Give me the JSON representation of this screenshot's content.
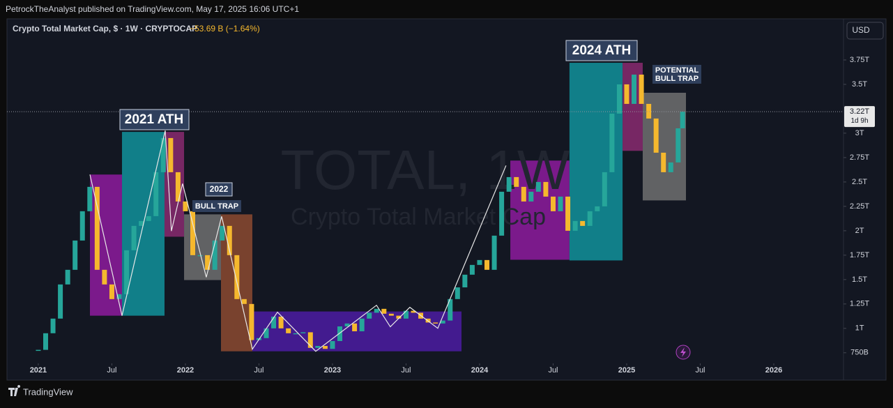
{
  "header": {
    "publisher": "PetrockTheAnalyst published on TradingView.com, May 17, 2025 16:06 UTC+1",
    "symbol": "Crypto Total Market Cap, $ · 1W · CRYPTOCAP",
    "change": "−53.69 B (−1.64%)",
    "currency": "USD"
  },
  "footer": {
    "brand": "TradingView"
  },
  "chart_data": {
    "type": "candlestick",
    "watermark": "TOTAL, 1W",
    "watermark_sub": "Crypto Total Market Cap",
    "x": [
      2021.0,
      2021.05,
      2021.1,
      2021.15,
      2021.2,
      2021.25,
      2021.3,
      2021.35,
      2021.4,
      2021.45,
      2021.5,
      2021.55,
      2021.6,
      2021.65,
      2021.7,
      2021.75,
      2021.8,
      2021.85,
      2021.9,
      2021.95,
      2022.0,
      2022.05,
      2022.1,
      2022.15,
      2022.2,
      2022.25,
      2022.3,
      2022.35,
      2022.4,
      2022.45,
      2022.5,
      2022.55,
      2022.6,
      2022.65,
      2022.7,
      2022.75,
      2022.8,
      2022.85,
      2022.9,
      2022.95,
      2023.0,
      2023.05,
      2023.1,
      2023.15,
      2023.2,
      2023.25,
      2023.3,
      2023.35,
      2023.4,
      2023.45,
      2023.5,
      2023.55,
      2023.6,
      2023.65,
      2023.7,
      2023.75,
      2023.8,
      2023.85,
      2023.9,
      2023.95,
      2024.0,
      2024.05,
      2024.1,
      2024.15,
      2024.2,
      2024.25,
      2024.3,
      2024.35,
      2024.4,
      2024.45,
      2024.5,
      2024.55,
      2024.6,
      2024.65,
      2024.7,
      2024.75,
      2024.8,
      2024.85,
      2024.9,
      2024.95,
      2025.0,
      2025.05,
      2025.1,
      2025.15,
      2025.2,
      2025.25,
      2025.3,
      2025.35,
      2025.38
    ],
    "values": [
      0.78,
      0.95,
      1.1,
      1.45,
      1.6,
      1.9,
      2.2,
      2.45,
      1.6,
      1.45,
      1.3,
      1.35,
      1.8,
      2.05,
      2.1,
      2.15,
      2.6,
      2.95,
      2.6,
      2.3,
      2.2,
      1.75,
      1.75,
      1.6,
      1.9,
      2.05,
      1.75,
      1.3,
      1.25,
      0.88,
      0.9,
      1.0,
      1.12,
      1.0,
      0.95,
      0.95,
      0.96,
      0.8,
      0.82,
      0.79,
      0.87,
      1.02,
      1.05,
      0.97,
      1.1,
      1.16,
      1.2,
      1.15,
      1.13,
      1.1,
      1.18,
      1.16,
      1.1,
      1.06,
      1.05,
      1.08,
      1.3,
      1.42,
      1.55,
      1.65,
      1.7,
      1.6,
      1.95,
      2.4,
      2.55,
      2.45,
      2.3,
      2.4,
      2.5,
      2.35,
      2.2,
      2.35,
      2.0,
      2.1,
      2.05,
      2.2,
      2.25,
      2.6,
      3.2,
      3.5,
      3.3,
      3.6,
      3.3,
      3.15,
      2.8,
      2.6,
      2.7,
      3.05,
      3.22
    ],
    "up_color": "#26a69a",
    "down_color": "#f5b82e",
    "price_label": "3.22T",
    "countdown": "1d 9h",
    "xlim": [
      2020.787,
      2026.474
    ],
    "xticks": [
      2021,
      {
        "value": 2021.5,
        "label": "Jul"
      },
      2022,
      {
        "value": 2022.5,
        "label": "Jul"
      },
      2023,
      {
        "value": 2023.5,
        "label": "Jul"
      },
      2024,
      {
        "value": 2024.5,
        "label": "Jul"
      },
      2025,
      {
        "value": 2025.5,
        "label": "Jul"
      },
      2026
    ],
    "ylim": [
      0.67,
      4.15
    ],
    "yticks": [
      {
        "value": 0.75,
        "label": "750B"
      },
      {
        "value": 1,
        "label": "1T"
      },
      {
        "value": 1.25,
        "label": "1.25T"
      },
      {
        "value": 1.5,
        "label": "1.5T"
      },
      {
        "value": 1.75,
        "label": "1.75T"
      },
      {
        "value": 2,
        "label": "2T"
      },
      {
        "value": 2.25,
        "label": "2.25T"
      },
      {
        "value": 2.5,
        "label": "2.5T"
      },
      {
        "value": 2.75,
        "label": "2.75T"
      },
      {
        "value": 3,
        "label": "3T"
      },
      {
        "value": 3.5,
        "label": "3.5T"
      },
      {
        "value": 3.75,
        "label": "3.75T"
      }
    ],
    "zones": [
      {
        "x": [
          2021.351,
          2021.569
        ],
        "y": [
          2.576,
          1.13
        ],
        "color": "#8e1b9e"
      },
      {
        "x": [
          2021.569,
          2021.858
        ],
        "y": [
          3.013,
          1.13
        ],
        "color": "#12929b"
      },
      {
        "x": [
          2021.858,
          2021.991
        ],
        "y": [
          3.013,
          1.939
        ],
        "color": "#8a2a70"
      },
      {
        "x": [
          2021.991,
          2022.242
        ],
        "y": [
          2.168,
          1.495
        ],
        "color": "#707070"
      },
      {
        "x": [
          2022.242,
          2022.455
        ],
        "y": [
          2.168,
          0.765
        ],
        "color": "#8c4a30"
      },
      {
        "x": [
          2022.455,
          2023.877
        ],
        "y": [
          1.173,
          0.765
        ],
        "color": "#4c1ca2"
      },
      {
        "x": [
          2024.209,
          2024.611
        ],
        "y": [
          2.719,
          1.703
        ],
        "color": "#8e1b9e"
      },
      {
        "x": [
          2024.611,
          2024.972
        ],
        "y": [
          3.721,
          1.696
        ],
        "color": "#12929b"
      },
      {
        "x": [
          2024.972,
          2025.109
        ],
        "y": [
          3.721,
          2.819
        ],
        "color": "#8a2a70"
      },
      {
        "x": [
          2025.109,
          2025.403
        ],
        "y": [
          3.414,
          2.311
        ],
        "color": "#707070"
      }
    ],
    "zigzag": {
      "x": [
        2021.351,
        2021.569,
        2021.863,
        2021.905,
        2021.981,
        2022.142,
        2022.246,
        2022.455,
        2022.626,
        2022.886,
        2023.299,
        2023.393,
        2023.526,
        2023.716,
        2024.18
      ],
      "y": [
        2.576,
        1.13,
        3.027,
        1.997,
        2.483,
        1.524,
        2.147,
        0.787,
        1.166,
        0.765,
        1.237,
        1.016,
        1.216,
        1.001,
        2.669
      ]
    },
    "annotations": {
      "ath_2021": "2021 ATH",
      "year_2022": "2022",
      "bull_trap": "BULL TRAP",
      "ath_2024": "2024 ATH",
      "potential": [
        "POTENTIAL",
        "BULL TRAP"
      ]
    }
  }
}
